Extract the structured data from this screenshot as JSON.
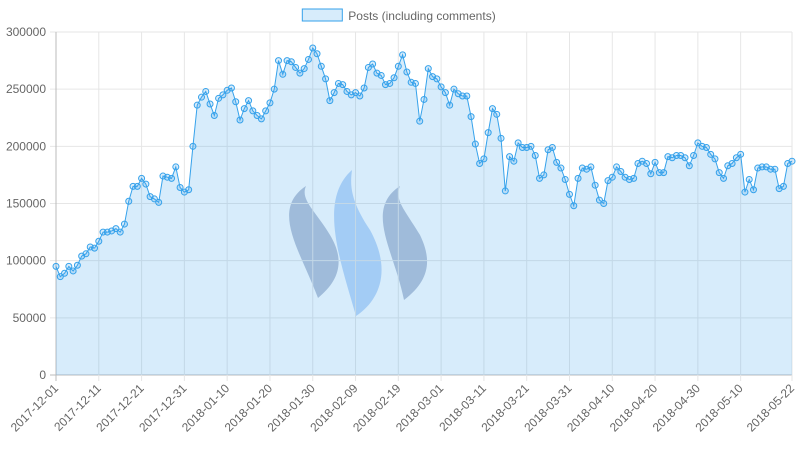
{
  "chart_data": {
    "type": "line",
    "legend_position": "top",
    "grid": true,
    "fill_area": true,
    "ylim": [
      0,
      300000
    ],
    "yticks": [
      0,
      50000,
      100000,
      150000,
      200000,
      250000,
      300000
    ],
    "xlim": [
      "2017-12-01",
      "2018-05-22"
    ],
    "xticks": [
      "2017-12-01",
      "2017-12-11",
      "2017-12-21",
      "2017-12-31",
      "2018-01-10",
      "2018-01-20",
      "2018-01-30",
      "2018-02-09",
      "2018-02-19",
      "2018-03-01",
      "2018-03-11",
      "2018-03-21",
      "2018-03-31",
      "2018-04-10",
      "2018-04-20",
      "2018-04-30",
      "2018-05-10",
      "2018-05-22"
    ],
    "x": [
      "2017-12-01",
      "2017-12-02",
      "2017-12-03",
      "2017-12-04",
      "2017-12-05",
      "2017-12-06",
      "2017-12-07",
      "2017-12-08",
      "2017-12-09",
      "2017-12-10",
      "2017-12-11",
      "2017-12-12",
      "2017-12-13",
      "2017-12-14",
      "2017-12-15",
      "2017-12-16",
      "2017-12-17",
      "2017-12-18",
      "2017-12-19",
      "2017-12-20",
      "2017-12-21",
      "2017-12-22",
      "2017-12-23",
      "2017-12-24",
      "2017-12-25",
      "2017-12-26",
      "2017-12-27",
      "2017-12-28",
      "2017-12-29",
      "2017-12-30",
      "2017-12-31",
      "2018-01-01",
      "2018-01-02",
      "2018-01-03",
      "2018-01-04",
      "2018-01-05",
      "2018-01-06",
      "2018-01-07",
      "2018-01-08",
      "2018-01-09",
      "2018-01-10",
      "2018-01-11",
      "2018-01-12",
      "2018-01-13",
      "2018-01-14",
      "2018-01-15",
      "2018-01-16",
      "2018-01-17",
      "2018-01-18",
      "2018-01-19",
      "2018-01-20",
      "2018-01-21",
      "2018-01-22",
      "2018-01-23",
      "2018-01-24",
      "2018-01-25",
      "2018-01-26",
      "2018-01-27",
      "2018-01-28",
      "2018-01-29",
      "2018-01-30",
      "2018-01-31",
      "2018-02-01",
      "2018-02-02",
      "2018-02-03",
      "2018-02-04",
      "2018-02-05",
      "2018-02-06",
      "2018-02-07",
      "2018-02-08",
      "2018-02-09",
      "2018-02-10",
      "2018-02-11",
      "2018-02-12",
      "2018-02-13",
      "2018-02-14",
      "2018-02-15",
      "2018-02-16",
      "2018-02-17",
      "2018-02-18",
      "2018-02-19",
      "2018-02-20",
      "2018-02-21",
      "2018-02-22",
      "2018-02-23",
      "2018-02-24",
      "2018-02-25",
      "2018-02-26",
      "2018-02-27",
      "2018-02-28",
      "2018-03-01",
      "2018-03-02",
      "2018-03-03",
      "2018-03-04",
      "2018-03-05",
      "2018-03-06",
      "2018-03-07",
      "2018-03-08",
      "2018-03-09",
      "2018-03-10",
      "2018-03-11",
      "2018-03-12",
      "2018-03-13",
      "2018-03-14",
      "2018-03-15",
      "2018-03-16",
      "2018-03-17",
      "2018-03-18",
      "2018-03-19",
      "2018-03-20",
      "2018-03-21",
      "2018-03-22",
      "2018-03-23",
      "2018-03-24",
      "2018-03-25",
      "2018-03-26",
      "2018-03-27",
      "2018-03-28",
      "2018-03-29",
      "2018-03-30",
      "2018-03-31",
      "2018-04-01",
      "2018-04-02",
      "2018-04-03",
      "2018-04-04",
      "2018-04-05",
      "2018-04-06",
      "2018-04-07",
      "2018-04-08",
      "2018-04-09",
      "2018-04-10",
      "2018-04-11",
      "2018-04-12",
      "2018-04-13",
      "2018-04-14",
      "2018-04-15",
      "2018-04-16",
      "2018-04-17",
      "2018-04-18",
      "2018-04-19",
      "2018-04-20",
      "2018-04-21",
      "2018-04-22",
      "2018-04-23",
      "2018-04-24",
      "2018-04-25",
      "2018-04-26",
      "2018-04-27",
      "2018-04-28",
      "2018-04-29",
      "2018-04-30",
      "2018-05-01",
      "2018-05-02",
      "2018-05-03",
      "2018-05-04",
      "2018-05-05",
      "2018-05-06",
      "2018-05-07",
      "2018-05-08",
      "2018-05-09",
      "2018-05-10",
      "2018-05-11",
      "2018-05-12",
      "2018-05-13",
      "2018-05-14",
      "2018-05-15",
      "2018-05-16",
      "2018-05-17",
      "2018-05-18",
      "2018-05-19",
      "2018-05-20",
      "2018-05-21",
      "2018-05-22"
    ],
    "series": [
      {
        "name": "Posts (including comments)",
        "color": "#36a2eb",
        "values": [
          95000,
          86000,
          89000,
          95000,
          91000,
          96000,
          104000,
          106000,
          112000,
          111000,
          117000,
          125000,
          125000,
          126000,
          128000,
          125000,
          132000,
          152000,
          165000,
          165000,
          172000,
          167000,
          156000,
          154000,
          151000,
          174000,
          173000,
          172000,
          182000,
          164000,
          160000,
          162000,
          200000,
          236000,
          243000,
          248000,
          237000,
          227000,
          242000,
          245000,
          249000,
          251000,
          239000,
          223000,
          233000,
          240000,
          231000,
          227000,
          224000,
          231000,
          238000,
          250000,
          275000,
          263000,
          275000,
          274000,
          269000,
          264000,
          268000,
          276000,
          286000,
          281000,
          270000,
          259000,
          240000,
          247000,
          255000,
          254000,
          248000,
          245000,
          247000,
          244000,
          251000,
          269000,
          272000,
          264000,
          262000,
          254000,
          255000,
          260000,
          270000,
          280000,
          265000,
          256000,
          255000,
          222000,
          241000,
          268000,
          261000,
          259000,
          252000,
          247000,
          236000,
          250000,
          246000,
          244000,
          244000,
          226000,
          202000,
          185000,
          189000,
          212000,
          233000,
          228000,
          207000,
          161000,
          191000,
          187000,
          203000,
          199000,
          199000,
          200000,
          192000,
          172000,
          175000,
          197000,
          199000,
          186000,
          181000,
          171000,
          158000,
          148000,
          172000,
          181000,
          180000,
          182000,
          166000,
          153000,
          150000,
          170000,
          173000,
          182000,
          178000,
          173000,
          171000,
          172000,
          185000,
          187000,
          185000,
          176000,
          186000,
          177000,
          177000,
          191000,
          190000,
          192000,
          192000,
          190000,
          183000,
          192000,
          203000,
          200000,
          199000,
          193000,
          189000,
          177000,
          172000,
          183000,
          185000,
          190000,
          193000,
          160000,
          171000,
          162000,
          181000,
          182000,
          182000,
          180000,
          180000,
          163000,
          165000,
          185000,
          187000
        ]
      }
    ]
  }
}
